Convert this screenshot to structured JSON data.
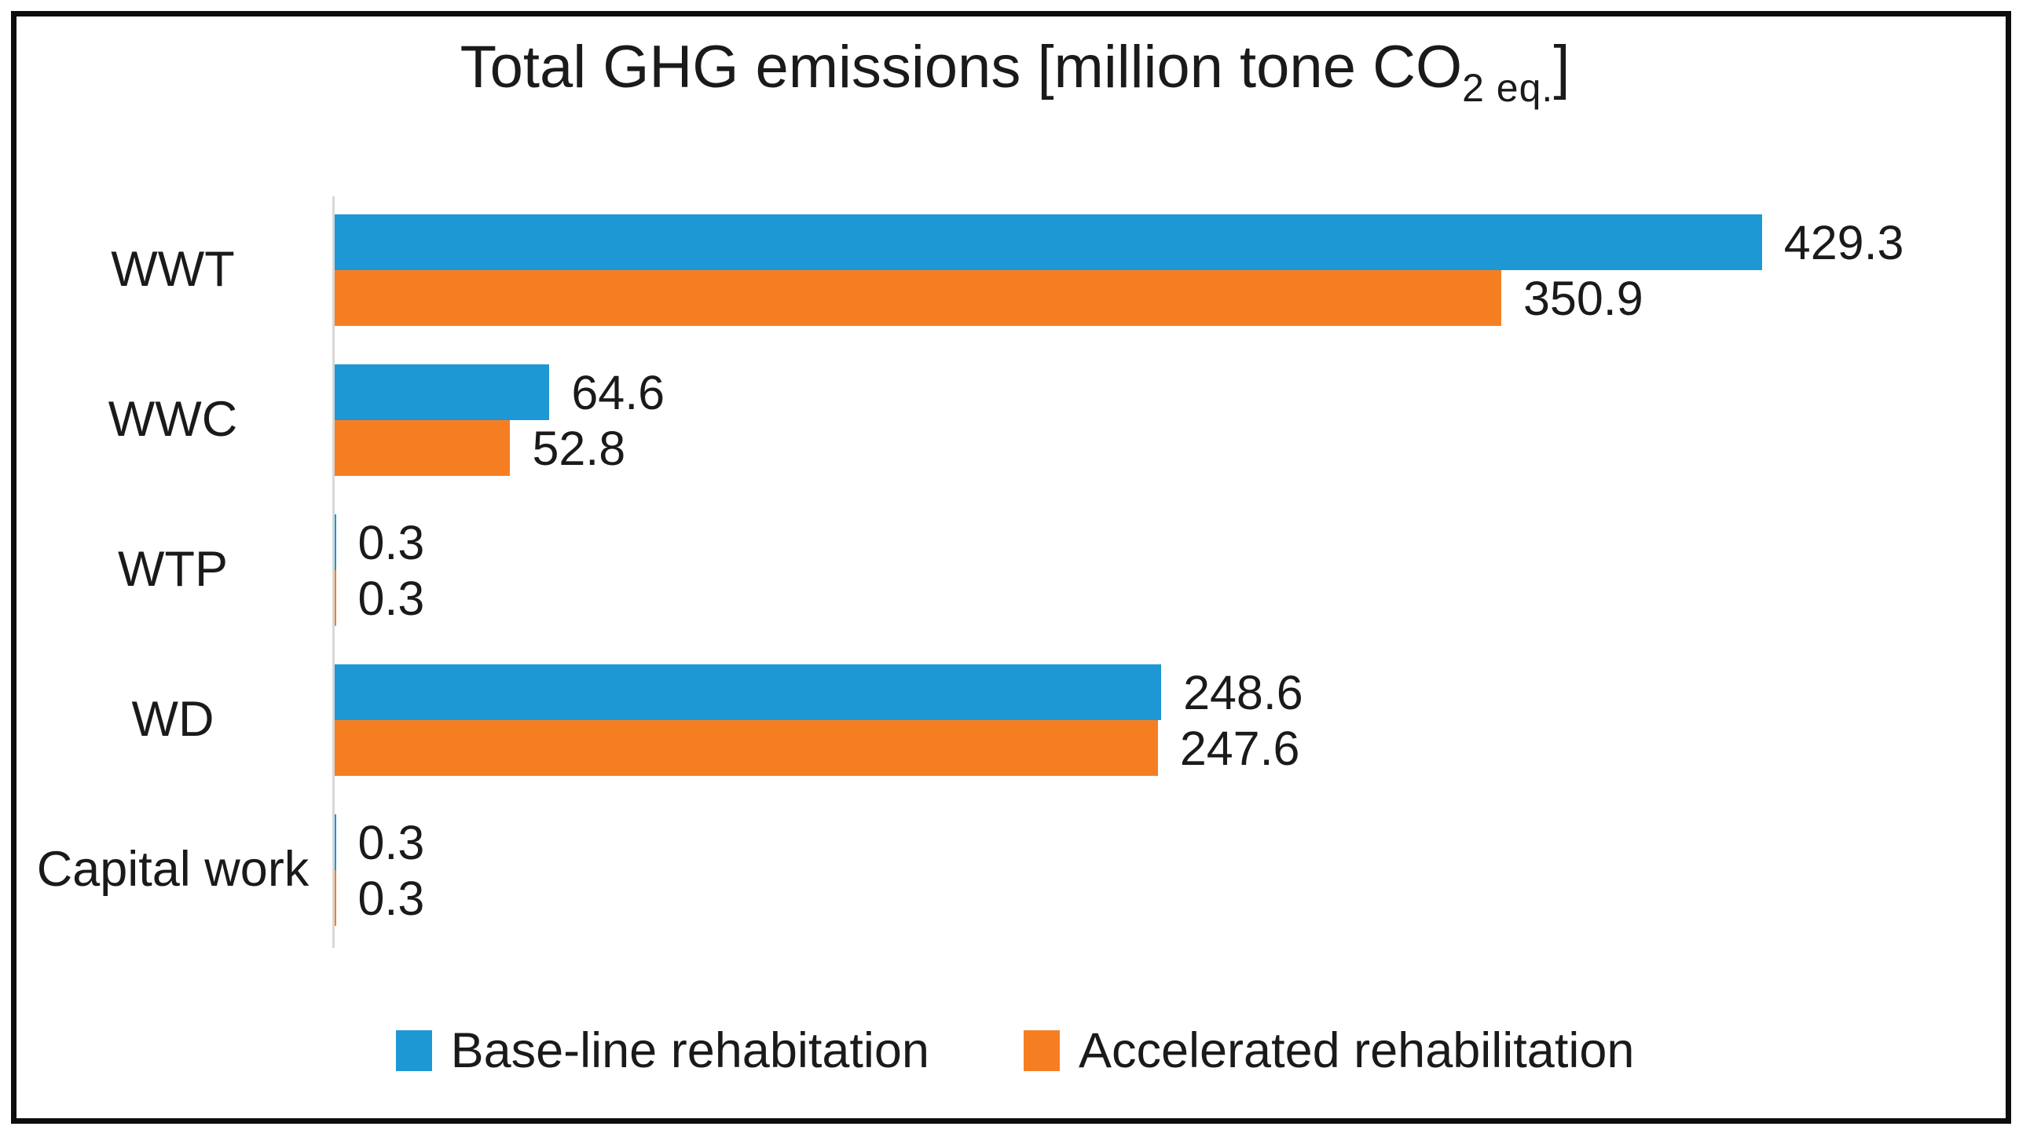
{
  "title": {
    "prefix": "Total GHG emissions [million tone CO",
    "subscript": "2 eq.",
    "suffix": "]"
  },
  "colors": {
    "baseline_blue": "#1d98d5",
    "accelerated_orange": "#f67e22",
    "axis_gray": "#d8d8d8",
    "frame_black": "#0d0d0d",
    "text": "#1a1a1a"
  },
  "legend": {
    "items": [
      {
        "label": "Base-line rehabitation",
        "color": "#1d98d5"
      },
      {
        "label": "Accelerated rehabilitation",
        "color": "#f67e22"
      }
    ]
  },
  "chart_data": {
    "type": "bar",
    "orientation": "horizontal",
    "title": "Total GHG emissions [million tone CO2 eq.]",
    "categories": [
      "WWT",
      "WWC",
      "WTP",
      "WD",
      "Capital work"
    ],
    "series": [
      {
        "name": "Base-line rehabitation",
        "color": "#1d98d5",
        "values": [
          429.3,
          64.6,
          0.3,
          248.6,
          0.3
        ]
      },
      {
        "name": "Accelerated rehabilitation",
        "color": "#f67e22",
        "values": [
          350.9,
          52.8,
          0.3,
          247.6,
          0.3
        ]
      }
    ],
    "value_labels": [
      [
        "429.3",
        "64.6",
        "0.3",
        "248.6",
        "0.3"
      ],
      [
        "350.9",
        "52.8",
        "0.3",
        "247.6",
        "0.3"
      ]
    ],
    "xlim": [
      0,
      430
    ],
    "grid": false,
    "legend_position": "bottom"
  }
}
